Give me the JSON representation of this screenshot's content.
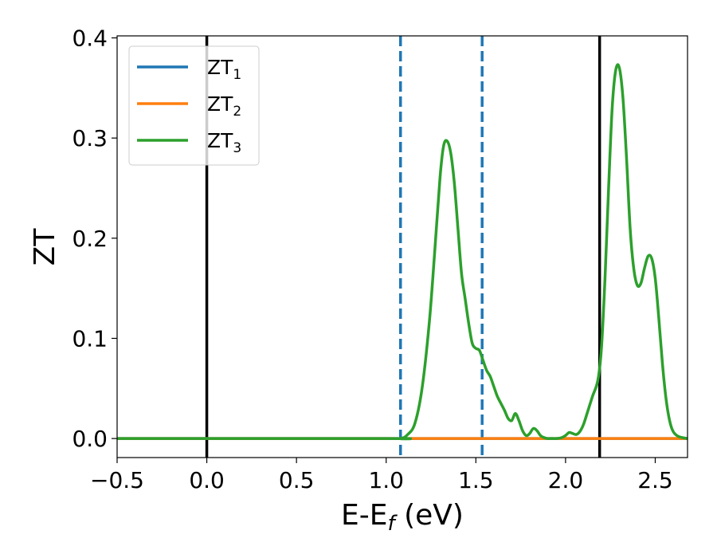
{
  "chart_data": {
    "type": "line",
    "xlabel_main": "E-E",
    "xlabel_sub": "f",
    "xlabel_unit": " (eV)",
    "ylabel": "ZT",
    "xlim": [
      -0.5,
      2.68
    ],
    "ylim": [
      -0.019,
      0.402
    ],
    "xticks": [
      -0.5,
      0.0,
      0.5,
      1.0,
      1.5,
      2.0,
      2.5
    ],
    "xtick_labels": [
      "−0.5",
      "0.0",
      "0.5",
      "1.0",
      "1.5",
      "2.0",
      "2.5"
    ],
    "yticks": [
      0.0,
      0.1,
      0.2,
      0.3,
      0.4
    ],
    "ytick_labels": [
      "0.0",
      "0.1",
      "0.2",
      "0.3",
      "0.4"
    ],
    "grid": false,
    "legend_position": "upper-left",
    "vertical_lines": [
      {
        "x": 0.0,
        "style": "solid",
        "color": "#000000"
      },
      {
        "x": 2.19,
        "style": "solid",
        "color": "#000000"
      },
      {
        "x": 1.08,
        "style": "dashed",
        "color": "#1f77b4"
      },
      {
        "x": 1.535,
        "style": "dashed",
        "color": "#1f77b4"
      }
    ],
    "series": [
      {
        "name": "ZT",
        "sub": "1",
        "color": "#1f77b4",
        "x": [
          -0.5,
          1.0,
          1.5,
          2.0,
          2.19,
          2.68
        ],
        "y": [
          0.0,
          0.0,
          0.0,
          0.0,
          0.0,
          0.0
        ]
      },
      {
        "name": "ZT",
        "sub": "2",
        "color": "#ff7f0e",
        "x": [
          -0.5,
          1.0,
          1.5,
          2.0,
          2.19,
          2.68
        ],
        "y": [
          0.0,
          0.0,
          0.0,
          0.0,
          0.0,
          0.0
        ]
      },
      {
        "name": "ZT",
        "sub": "3",
        "color": "#2ca02c",
        "x": [
          -0.5,
          1.0,
          1.08,
          1.12,
          1.16,
          1.2,
          1.24,
          1.27,
          1.3,
          1.32,
          1.34,
          1.36,
          1.38,
          1.4,
          1.42,
          1.44,
          1.46,
          1.48,
          1.5,
          1.52,
          1.54,
          1.56,
          1.58,
          1.6,
          1.62,
          1.64,
          1.66,
          1.68,
          1.7,
          1.72,
          1.74,
          1.76,
          1.78,
          1.8,
          1.82,
          1.84,
          1.86,
          1.88,
          1.9,
          1.92,
          1.95,
          1.98,
          2.0,
          2.02,
          2.04,
          2.06,
          2.08,
          2.1,
          2.12,
          2.15,
          2.18,
          2.2,
          2.22,
          2.24,
          2.26,
          2.28,
          2.3,
          2.32,
          2.34,
          2.36,
          2.38,
          2.4,
          2.42,
          2.44,
          2.46,
          2.48,
          2.5,
          2.52,
          2.54,
          2.56,
          2.58,
          2.6,
          2.63,
          2.68
        ],
        "y": [
          0.0,
          0.0,
          0.0,
          0.004,
          0.015,
          0.05,
          0.115,
          0.185,
          0.26,
          0.292,
          0.297,
          0.285,
          0.255,
          0.21,
          0.165,
          0.14,
          0.115,
          0.095,
          0.09,
          0.088,
          0.078,
          0.068,
          0.062,
          0.052,
          0.042,
          0.035,
          0.028,
          0.02,
          0.018,
          0.025,
          0.018,
          0.008,
          0.003,
          0.005,
          0.01,
          0.008,
          0.003,
          0.001,
          0.0,
          0.0,
          0.0,
          0.001,
          0.003,
          0.006,
          0.005,
          0.004,
          0.007,
          0.014,
          0.025,
          0.042,
          0.058,
          0.09,
          0.16,
          0.25,
          0.33,
          0.368,
          0.37,
          0.34,
          0.28,
          0.21,
          0.17,
          0.153,
          0.155,
          0.17,
          0.182,
          0.18,
          0.16,
          0.12,
          0.075,
          0.04,
          0.018,
          0.007,
          0.002,
          0.0
        ]
      }
    ]
  }
}
